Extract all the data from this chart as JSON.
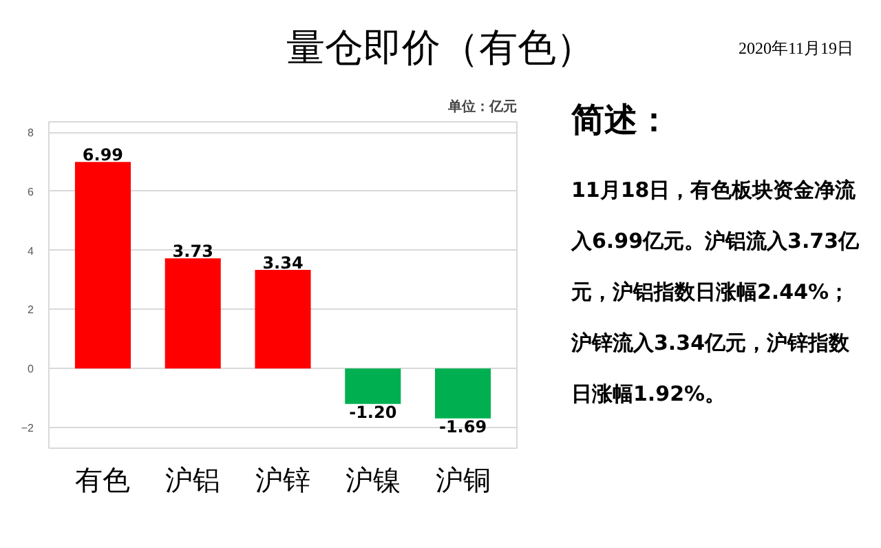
{
  "chart_data": {
    "type": "bar",
    "title": "量仓即价（有色）",
    "subtitle": "单位：亿元",
    "categories": [
      "有色",
      "沪铝",
      "沪锌",
      "沪镍",
      "沪铜"
    ],
    "values": [
      6.99,
      3.73,
      3.34,
      -1.2,
      -1.69
    ],
    "colors": [
      "#ff0000",
      "#ff0000",
      "#ff0000",
      "#00b050",
      "#00b050"
    ],
    "value_labels": [
      "6.99",
      "3.73",
      "3.34",
      "-1.20",
      "-1.69"
    ],
    "ylim": [
      -2.7,
      8.35
    ],
    "yticks": [
      -2,
      0,
      2,
      4,
      6,
      8
    ],
    "grid": "y",
    "annotations": [
      "2020年11月19日",
      "简述：",
      "11月18日，有色板块资金净流入6.99亿元。沪铝流入3.73亿元，沪铝指数日涨幅2.44%；沪锌流入3.34亿元，沪锌指数日涨幅1.92%。"
    ]
  }
}
